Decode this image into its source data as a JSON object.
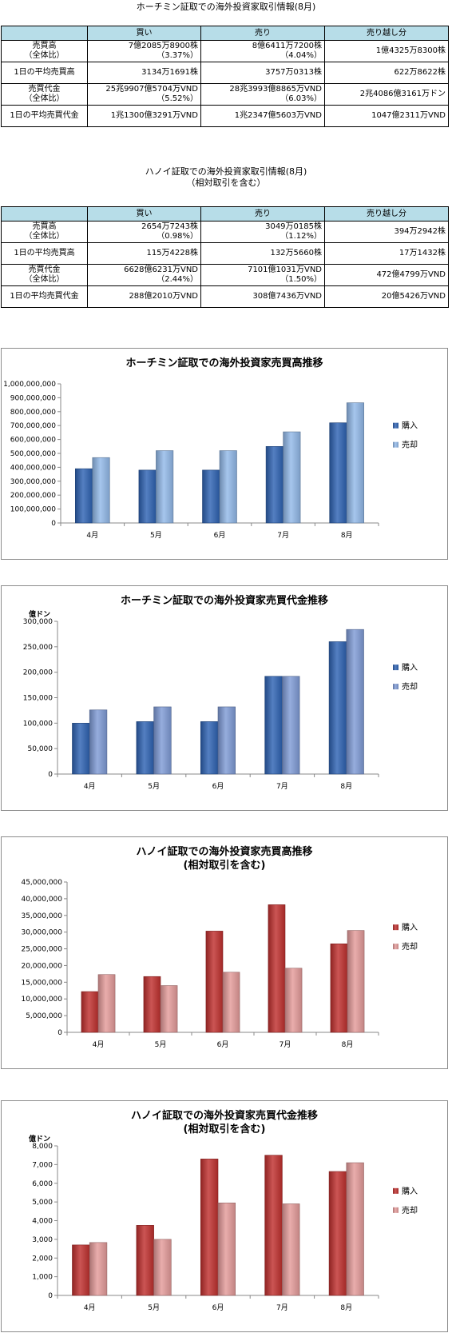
{
  "table1": {
    "title": "ホーチミン証取での海外投資家取引情報(8月)",
    "headers": [
      "",
      "買い",
      "売り",
      "売り越し分"
    ],
    "rows": [
      [
        "売買高\n（全体比）",
        "7億2085万8900株\n（3.37%）",
        "8億6411万7200株\n（4.04%）",
        "1億4325万8300株"
      ],
      [
        "1日の平均売買高",
        "3134万1691株",
        "3757万0313株",
        "622万8622株"
      ],
      [
        "売買代金\n（全体比）",
        "25兆9907億5704万VND\n（5.52%）",
        "28兆3993億8865万VND\n（6.03%）",
        "2兆4086億3161万ドン"
      ],
      [
        "1日の平均売買代金",
        "1兆1300億3291万VND",
        "1兆2347億5603万VND",
        "1047億2311万VND"
      ]
    ]
  },
  "table2": {
    "title": "ハノイ証取での海外投資家取引情報(8月)\n（相対取引を含む）",
    "headers": [
      "",
      "買い",
      "売り",
      "売り越し分"
    ],
    "rows": [
      [
        "売買高\n（全体比）",
        "2654万7243株\n（0.98%）",
        "3049万0185株\n（1.12%）",
        "394万2942株"
      ],
      [
        "1日の平均売買高",
        "115万4228株",
        "132万5660株",
        "17万1432株"
      ],
      [
        "売買代金\n（全体比）",
        "6628億6231万VND\n（2.44%）",
        "7101億1031万VND\n（1.50%）",
        "472億4799万VND"
      ],
      [
        "1日の平均売買代金",
        "288億2010万VND",
        "308億7436万VND",
        "20億5426万VND"
      ]
    ]
  },
  "chart_data": [
    {
      "type": "bar",
      "title": "ホーチミン証取での海外投資家売買高推移",
      "ylabel": "",
      "categories": [
        "4月",
        "5月",
        "6月",
        "7月",
        "8月"
      ],
      "series": [
        {
          "name": "購入",
          "values": [
            390000000,
            380000000,
            380000000,
            550000000,
            720000000
          ]
        },
        {
          "name": "売却",
          "values": [
            470000000,
            520000000,
            520000000,
            655000000,
            864000000
          ]
        }
      ],
      "ylim": [
        0,
        1000000000
      ],
      "yticks": [
        0,
        100000000,
        200000000,
        300000000,
        400000000,
        500000000,
        600000000,
        700000000,
        800000000,
        900000000,
        1000000000
      ],
      "ytick_labels": [
        "0",
        "100,000,000",
        "200,000,000",
        "300,000,000",
        "400,000,000",
        "500,000,000",
        "600,000,000",
        "700,000,000",
        "800,000,000",
        "900,000,000",
        "1,000,000,000"
      ],
      "legend": "right",
      "colors": [
        "#2e63b3",
        "#92b9e9"
      ]
    },
    {
      "type": "bar",
      "title": "ホーチミン証取での海外投資家売買代金推移",
      "ylabel": "億ドン",
      "categories": [
        "4月",
        "5月",
        "6月",
        "7月",
        "8月"
      ],
      "series": [
        {
          "name": "購入",
          "values": [
            100000,
            103000,
            103000,
            192000,
            260000
          ]
        },
        {
          "name": "売却",
          "values": [
            126000,
            132000,
            132000,
            192000,
            284000
          ]
        }
      ],
      "ylim": [
        0,
        300000
      ],
      "yticks": [
        0,
        50000,
        100000,
        150000,
        200000,
        250000,
        300000
      ],
      "ytick_labels": [
        "0",
        "50,000",
        "100,000",
        "150,000",
        "200,000",
        "250,000",
        "300,000"
      ],
      "legend": "right",
      "colors": [
        "#2e63b3",
        "#7f9bd6"
      ]
    },
    {
      "type": "bar",
      "title": "ハノイ証取での海外投資家売買高推移\n(相対取引を含む)",
      "ylabel": "",
      "categories": [
        "4月",
        "5月",
        "6月",
        "7月",
        "8月"
      ],
      "series": [
        {
          "name": "購入",
          "values": [
            12200000,
            16700000,
            30300000,
            38200000,
            26500000
          ]
        },
        {
          "name": "売却",
          "values": [
            17300000,
            14000000,
            18000000,
            19200000,
            30500000
          ]
        }
      ],
      "ylim": [
        0,
        45000000
      ],
      "yticks": [
        0,
        5000000,
        10000000,
        15000000,
        20000000,
        25000000,
        30000000,
        35000000,
        40000000,
        45000000
      ],
      "ytick_labels": [
        "0",
        "5,000,000",
        "10,000,000",
        "15,000,000",
        "20,000,000",
        "25,000,000",
        "30,000,000",
        "35,000,000",
        "40,000,000",
        "45,000,000"
      ],
      "legend": "right",
      "colors": [
        "#c0302e",
        "#e49b9a"
      ]
    },
    {
      "type": "bar",
      "title": "ハノイ証取での海外投資家売買代金推移\n(相対取引を含む)",
      "ylabel": "億ドン",
      "categories": [
        "4月",
        "5月",
        "6月",
        "7月",
        "8月"
      ],
      "series": [
        {
          "name": "購入",
          "values": [
            2700,
            3750,
            7300,
            7500,
            6630
          ]
        },
        {
          "name": "売却",
          "values": [
            2830,
            3000,
            4950,
            4900,
            7100
          ]
        }
      ],
      "ylim": [
        0,
        8000
      ],
      "yticks": [
        0,
        1000,
        2000,
        3000,
        4000,
        5000,
        6000,
        7000,
        8000
      ],
      "ytick_labels": [
        "0",
        "1,000",
        "2,000",
        "3,000",
        "4,000",
        "5,000",
        "6,000",
        "7,000",
        "8,000"
      ],
      "legend": "right",
      "colors": [
        "#c0302e",
        "#e49b9a"
      ]
    }
  ]
}
